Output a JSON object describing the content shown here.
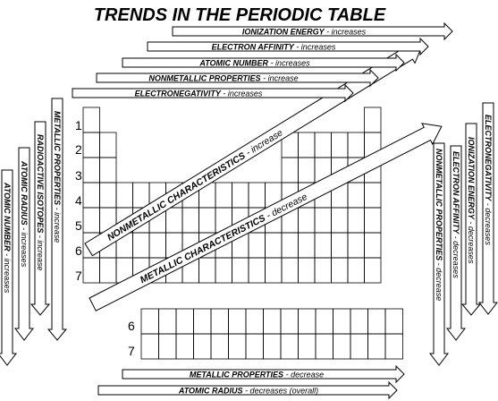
{
  "title": "TRENDS IN THE PERIODIC TABLE",
  "top_arrows": [
    {
      "label": "IONIZATION ENERGY",
      "trend": " - increases"
    },
    {
      "label": "ELECTRON AFFINITY",
      "trend": " - increases"
    },
    {
      "label": "ATOMIC NUMBER",
      "trend": " - increases"
    },
    {
      "label": "NONMETALLIC PROPERTIES",
      "trend": " - increase"
    },
    {
      "label": "ELECTRONEGATIVITY",
      "trend": " - increases"
    }
  ],
  "left_arrows": [
    {
      "label": "ATOMIC NUMBER",
      "trend": " - increases"
    },
    {
      "label": "ATOMIC RADIUS",
      "trend": " - increases"
    },
    {
      "label": "RADIOACTIVE ISOTOPES",
      "trend": " - increase"
    },
    {
      "label": "METALLIC PROPERTIES",
      "trend": " - increase"
    }
  ],
  "right_arrows": [
    {
      "label": "NONMETALLIC PROPERTIES",
      "trend": " - decrease"
    },
    {
      "label": "ELECTRON AFFINITY",
      "trend": " - decreases"
    },
    {
      "label": "IONIZATION ENERGY",
      "trend": " - decreases"
    },
    {
      "label": "ELECTRONEGATIVITY",
      "trend": " - decreases"
    }
  ],
  "diagonal_arrows": [
    {
      "label": "NONMETALLIC CHARACTERISTICS",
      "trend": " - increase"
    },
    {
      "label": "METALLIC CHARACTERISTICS",
      "trend": " - decrease"
    }
  ],
  "bottom_arrows": [
    {
      "label": "METALLIC PROPERTIES",
      "trend": " - decrease"
    },
    {
      "label": "ATOMIC RADIUS",
      "trend": " - decreases (overall)"
    }
  ],
  "period_numbers": [
    "1",
    "2",
    "3",
    "4",
    "5",
    "6",
    "7"
  ],
  "fblock_period_numbers": [
    "6",
    "7"
  ]
}
